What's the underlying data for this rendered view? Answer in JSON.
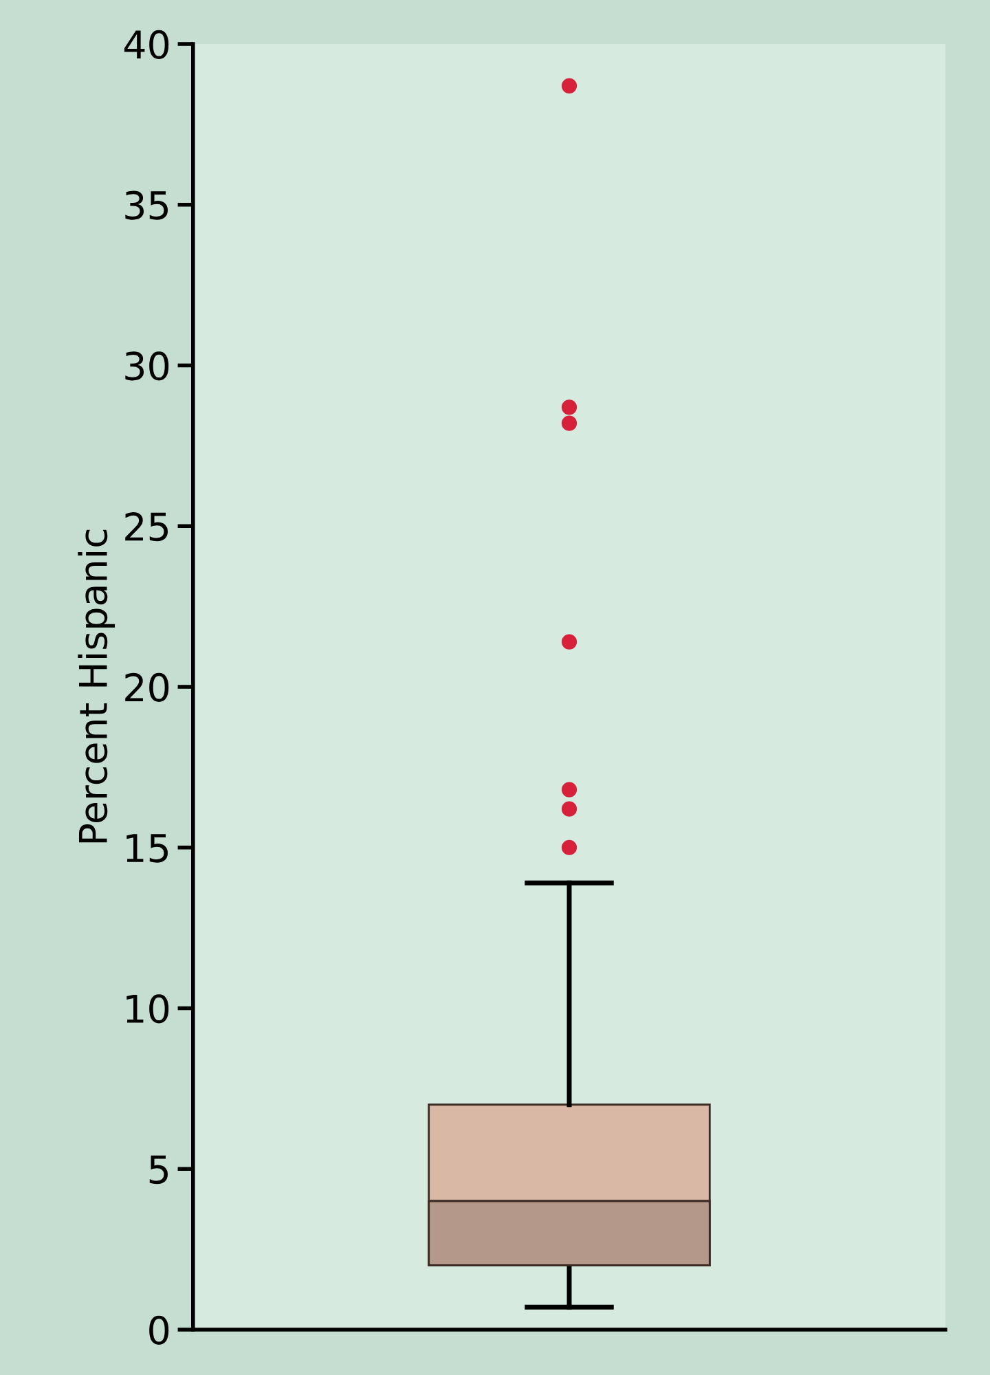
{
  "chart_data": {
    "type": "box",
    "ylabel": "Percent Hispanic",
    "categories": [
      null
    ],
    "series": [
      {
        "color": "#d9b8a6",
        "boxes": [
          {
            "low": 0.7,
            "q1": 2,
            "median": 4,
            "q3": 7,
            "high": 13.9,
            "outliers": [
              38.7,
              28.7,
              28.2,
              21.4,
              16.8,
              16.2,
              15.0
            ]
          }
        ]
      }
    ],
    "ylim": [
      0,
      40
    ],
    "yticks": [
      0,
      5,
      10,
      15,
      20,
      25,
      30,
      35,
      40
    ],
    "tick_labels": "y",
    "grid": false
  }
}
